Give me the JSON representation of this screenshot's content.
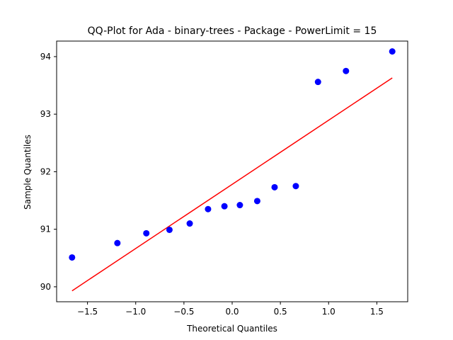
{
  "chart_data": {
    "type": "scatter",
    "title": "QQ-Plot for Ada - binary-trees - Package - PowerLimit = 15",
    "xlabel": "Theoretical Quantiles",
    "ylabel": "Sample Quantiles",
    "xlim": [
      -1.82,
      1.82
    ],
    "ylim": [
      89.74,
      94.27
    ],
    "xticks": [
      -1.5,
      -1.0,
      -0.5,
      0.0,
      0.5,
      1.0,
      1.5
    ],
    "xtick_labels": [
      "−1.5",
      "−1.0",
      "−0.5",
      "0.0",
      "0.5",
      "1.0",
      "1.5"
    ],
    "yticks": [
      90,
      91,
      92,
      93,
      94
    ],
    "ytick_labels": [
      "90",
      "91",
      "92",
      "93",
      "94"
    ],
    "grid": false,
    "series": [
      {
        "kind": "points",
        "color": "#0000ff",
        "points": [
          [
            -1.66,
            90.51
          ],
          [
            -1.19,
            90.76
          ],
          [
            -0.89,
            90.93
          ],
          [
            -0.65,
            90.99
          ],
          [
            -0.44,
            91.1
          ],
          [
            -0.25,
            91.35
          ],
          [
            -0.08,
            91.4
          ],
          [
            0.08,
            91.42
          ],
          [
            0.26,
            91.49
          ],
          [
            0.44,
            91.73
          ],
          [
            0.66,
            91.75
          ],
          [
            0.89,
            93.56
          ],
          [
            1.18,
            93.75
          ],
          [
            1.66,
            94.09
          ]
        ]
      },
      {
        "kind": "line",
        "color": "#ff0000",
        "points": [
          [
            -1.66,
            89.93
          ],
          [
            1.66,
            93.63
          ]
        ]
      }
    ]
  }
}
